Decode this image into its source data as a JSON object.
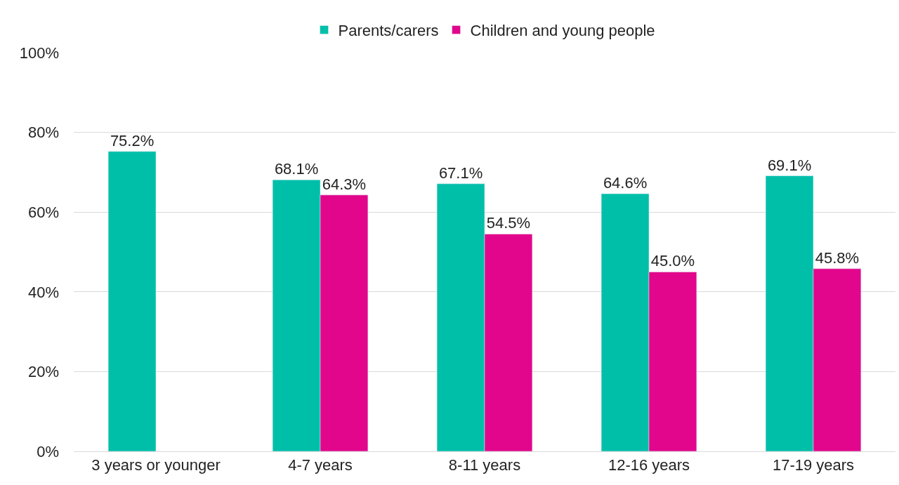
{
  "chart_data": {
    "type": "bar",
    "categories": [
      "3 years or younger",
      "4-7 years",
      "8-11 years",
      "12-16 years",
      "17-19 years"
    ],
    "series": [
      {
        "name": "Parents/carers",
        "color": "#00bfa9",
        "values": [
          75.2,
          68.1,
          67.1,
          64.6,
          69.1
        ],
        "value_labels": [
          "75.2%",
          "68.1%",
          "67.1%",
          "64.6%",
          "69.1%"
        ]
      },
      {
        "name": "Children and young people",
        "color": "#e2068c",
        "values": [
          null,
          64.3,
          54.5,
          45.0,
          45.8
        ],
        "value_labels": [
          null,
          "64.3%",
          "54.5%",
          "45.0%",
          "45.8%"
        ]
      }
    ],
    "ylim": [
      0,
      100
    ],
    "yticks": [
      {
        "value": 0,
        "label": "0%"
      },
      {
        "value": 20,
        "label": "20%"
      },
      {
        "value": 40,
        "label": "40%"
      },
      {
        "value": 60,
        "label": "60%"
      },
      {
        "value": 80,
        "label": "80%"
      },
      {
        "value": 100,
        "label": "100%"
      }
    ],
    "grid": "y",
    "legend": "top"
  }
}
